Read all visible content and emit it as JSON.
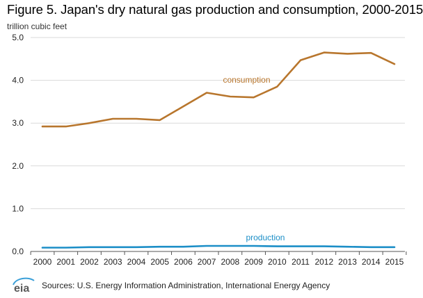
{
  "chart_data": {
    "type": "line",
    "title": "Figure 5. Japan's dry natural gas production and consumption, 2000-2015",
    "ylabel": "trillion cubic feet",
    "xlabel": "",
    "x": [
      2000,
      2001,
      2002,
      2003,
      2004,
      2005,
      2006,
      2007,
      2008,
      2009,
      2010,
      2011,
      2012,
      2013,
      2014,
      2015
    ],
    "ylim": [
      0,
      5.0
    ],
    "yticks": [
      "0.0",
      "1.0",
      "2.0",
      "3.0",
      "4.0",
      "5.0"
    ],
    "grid": "horizontal",
    "legend": "inline labels",
    "series": [
      {
        "name": "consumption",
        "color": "#b8762d",
        "values": [
          2.92,
          2.92,
          3.0,
          3.1,
          3.1,
          3.07,
          3.39,
          3.71,
          3.62,
          3.6,
          3.85,
          4.47,
          4.65,
          4.62,
          4.64,
          4.38
        ]
      },
      {
        "name": "production",
        "color": "#1b8ec7",
        "values": [
          0.09,
          0.09,
          0.1,
          0.1,
          0.1,
          0.11,
          0.11,
          0.13,
          0.13,
          0.13,
          0.12,
          0.12,
          0.12,
          0.11,
          0.1,
          0.1
        ]
      }
    ]
  },
  "footer": {
    "logo_text": "eia",
    "source": "Sources: U.S. Energy Information Administration, International Energy Agency"
  }
}
